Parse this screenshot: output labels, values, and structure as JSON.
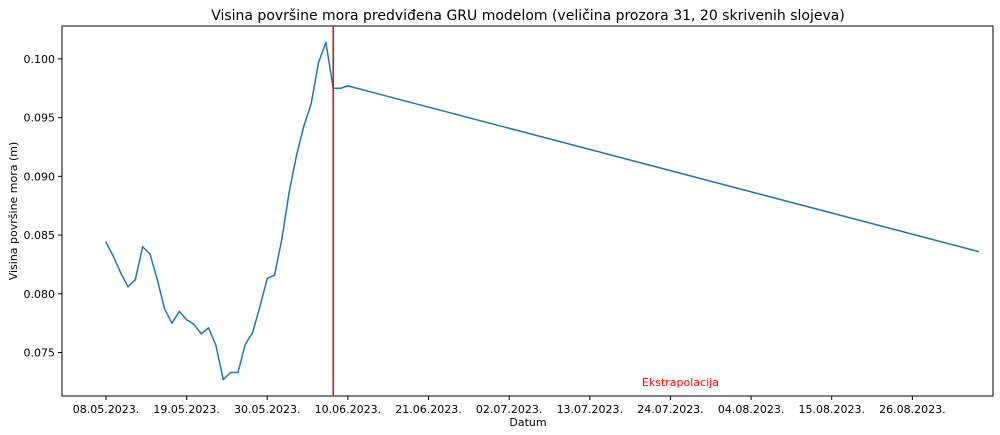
{
  "chart_data": {
    "type": "line",
    "title": "Visina površine mora predviđena GRU modelom (veličina prozora 31, 20 skrivenih slojeva)",
    "xlabel": "Datum",
    "ylabel": "Visina površine mora (m)",
    "xlim": [
      "2023-05-02",
      "2023-09-06"
    ],
    "ylim": [
      0.0713,
      0.1028
    ],
    "grid": false,
    "x_ticks": [
      {
        "date": "2023-05-08",
        "label": "08.05.2023."
      },
      {
        "date": "2023-05-19",
        "label": "19.05.2023."
      },
      {
        "date": "2023-05-30",
        "label": "30.05.2023."
      },
      {
        "date": "2023-06-10",
        "label": "10.06.2023."
      },
      {
        "date": "2023-06-21",
        "label": "21.06.2023."
      },
      {
        "date": "2023-07-02",
        "label": "02.07.2023."
      },
      {
        "date": "2023-07-13",
        "label": "13.07.2023."
      },
      {
        "date": "2023-07-24",
        "label": "24.07.2023."
      },
      {
        "date": "2023-08-04",
        "label": "04.08.2023."
      },
      {
        "date": "2023-08-15",
        "label": "15.08.2023."
      },
      {
        "date": "2023-08-26",
        "label": "26.08.2023."
      }
    ],
    "y_ticks": [
      {
        "value": 0.075,
        "label": "0.075"
      },
      {
        "value": 0.08,
        "label": "0.080"
      },
      {
        "value": 0.085,
        "label": "0.085"
      },
      {
        "value": 0.09,
        "label": "0.090"
      },
      {
        "value": 0.095,
        "label": "0.095"
      },
      {
        "value": 0.1,
        "label": "0.100"
      }
    ],
    "series": [
      {
        "color": "#1f77b4",
        "points": [
          [
            "2023-05-08",
            0.0844
          ],
          [
            "2023-05-09",
            0.0832
          ],
          [
            "2023-05-10",
            0.0818
          ],
          [
            "2023-05-11",
            0.0806
          ],
          [
            "2023-05-12",
            0.0812
          ],
          [
            "2023-05-13",
            0.084
          ],
          [
            "2023-05-14",
            0.0834
          ],
          [
            "2023-05-15",
            0.0812
          ],
          [
            "2023-05-16",
            0.0787
          ],
          [
            "2023-05-17",
            0.0775
          ],
          [
            "2023-05-18",
            0.0785
          ],
          [
            "2023-05-19",
            0.0778
          ],
          [
            "2023-05-20",
            0.0774
          ],
          [
            "2023-05-21",
            0.0766
          ],
          [
            "2023-05-22",
            0.0771
          ],
          [
            "2023-05-23",
            0.0756
          ],
          [
            "2023-05-24",
            0.0727
          ],
          [
            "2023-05-25",
            0.0733
          ],
          [
            "2023-05-26",
            0.0733
          ],
          [
            "2023-05-27",
            0.0757
          ],
          [
            "2023-05-28",
            0.0767
          ],
          [
            "2023-05-29",
            0.0789
          ],
          [
            "2023-05-30",
            0.0813
          ],
          [
            "2023-05-31",
            0.0816
          ],
          [
            "2023-06-01",
            0.0847
          ],
          [
            "2023-06-02",
            0.0887
          ],
          [
            "2023-06-03",
            0.0918
          ],
          [
            "2023-06-04",
            0.0943
          ],
          [
            "2023-06-05",
            0.0962
          ],
          [
            "2023-06-06",
            0.0997
          ],
          [
            "2023-06-07",
            0.1014
          ],
          [
            "2023-06-08",
            0.0975
          ],
          [
            "2023-06-09",
            0.0975
          ],
          [
            "2023-06-10",
            0.0977
          ],
          [
            "2023-09-04",
            0.0836
          ]
        ]
      }
    ],
    "vline": {
      "date": "2023-06-08",
      "color": "#ff0000"
    },
    "annotation": {
      "text": "Ekstrapolacija",
      "date": "2023-07-24",
      "value": 0.0725,
      "color": "#ff0000"
    }
  }
}
